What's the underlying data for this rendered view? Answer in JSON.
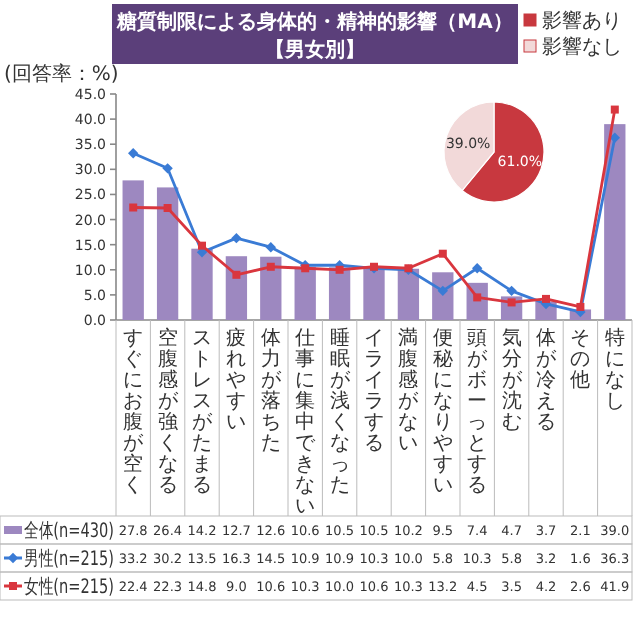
{
  "chart_data": [
    {
      "type": "bar",
      "title": "糖質制限による身体的・精神的影響（MA）",
      "subtitle": "【男女別】",
      "ylabel": "(回答率：%)",
      "categories": [
        "すぐにお腹が空く",
        "空腹感が強くなる",
        "ストレスがたまる",
        "疲れやすい",
        "体力が落ちた",
        "仕事に集中できない",
        "睡眠が浅くなった",
        "イライラする",
        "満腹感がない",
        "便秘になりやすい",
        "頭がボーっとする",
        "気分が沈む",
        "体が冷える",
        "その他",
        "特になし"
      ],
      "series": [
        {
          "name": "全体(n=430)",
          "type": "bar",
          "color": "#9d88c0",
          "values": [
            27.8,
            26.4,
            14.2,
            12.7,
            12.6,
            10.6,
            10.5,
            10.5,
            10.2,
            9.5,
            7.4,
            4.7,
            3.7,
            2.1,
            39.0
          ],
          "value_labels": [
            "27.8",
            "26.4",
            "14.2",
            "12.7",
            "12.6",
            "10.6",
            "10.5",
            "10.5",
            "10.2",
            "9.5",
            "7.4",
            "4.7",
            "3.7",
            "2.1",
            "39.0"
          ]
        },
        {
          "name": "男性(n=215)",
          "type": "line",
          "color": "#3a7bd5",
          "marker": "diamond",
          "values": [
            33.2,
            30.2,
            13.5,
            16.3,
            14.5,
            10.9,
            10.9,
            10.3,
            10.0,
            5.8,
            10.3,
            5.8,
            3.2,
            1.6,
            36.3
          ],
          "value_labels": [
            "33.2",
            "30.2",
            "13.5",
            "16.3",
            "14.5",
            "10.9",
            "10.9",
            "10.3",
            "10.0",
            "5.8",
            "10.3",
            "5.8",
            "3.2",
            "1.6",
            "36.3"
          ]
        },
        {
          "name": "女性(n=215)",
          "type": "line",
          "color": "#d9363e",
          "marker": "square",
          "values": [
            22.4,
            22.3,
            14.8,
            9.0,
            10.6,
            10.3,
            10.0,
            10.6,
            10.3,
            13.2,
            4.5,
            3.5,
            4.2,
            2.6,
            41.9
          ],
          "value_labels": [
            "22.4",
            "22.3",
            "14.8",
            "9.0",
            "10.6",
            "10.3",
            "10.0",
            "10.6",
            "10.3",
            "13.2",
            "4.5",
            "3.5",
            "4.2",
            "2.6",
            "41.9"
          ]
        }
      ],
      "ylim": [
        0,
        45
      ],
      "yticks": [
        {
          "value": 0,
          "label": "0.0"
        },
        {
          "value": 5,
          "label": "5.0"
        },
        {
          "value": 10,
          "label": "10.0"
        },
        {
          "value": 15,
          "label": "15.0"
        },
        {
          "value": 20,
          "label": "20.0"
        },
        {
          "value": 25,
          "label": "25.0"
        },
        {
          "value": 30,
          "label": "30.0"
        },
        {
          "value": 35,
          "label": "35.0"
        },
        {
          "value": 40,
          "label": "40.0"
        },
        {
          "value": 45,
          "label": "45.0"
        }
      ],
      "legend": "bottom"
    },
    {
      "type": "pie",
      "categories": [
        "影響あり",
        "影響なし"
      ],
      "values": [
        61.0,
        39.0
      ],
      "colors": [
        "#c8383f",
        "#f2d9d9"
      ],
      "value_labels": [
        "61.0%",
        "39.0%"
      ],
      "legend": "top right"
    }
  ]
}
